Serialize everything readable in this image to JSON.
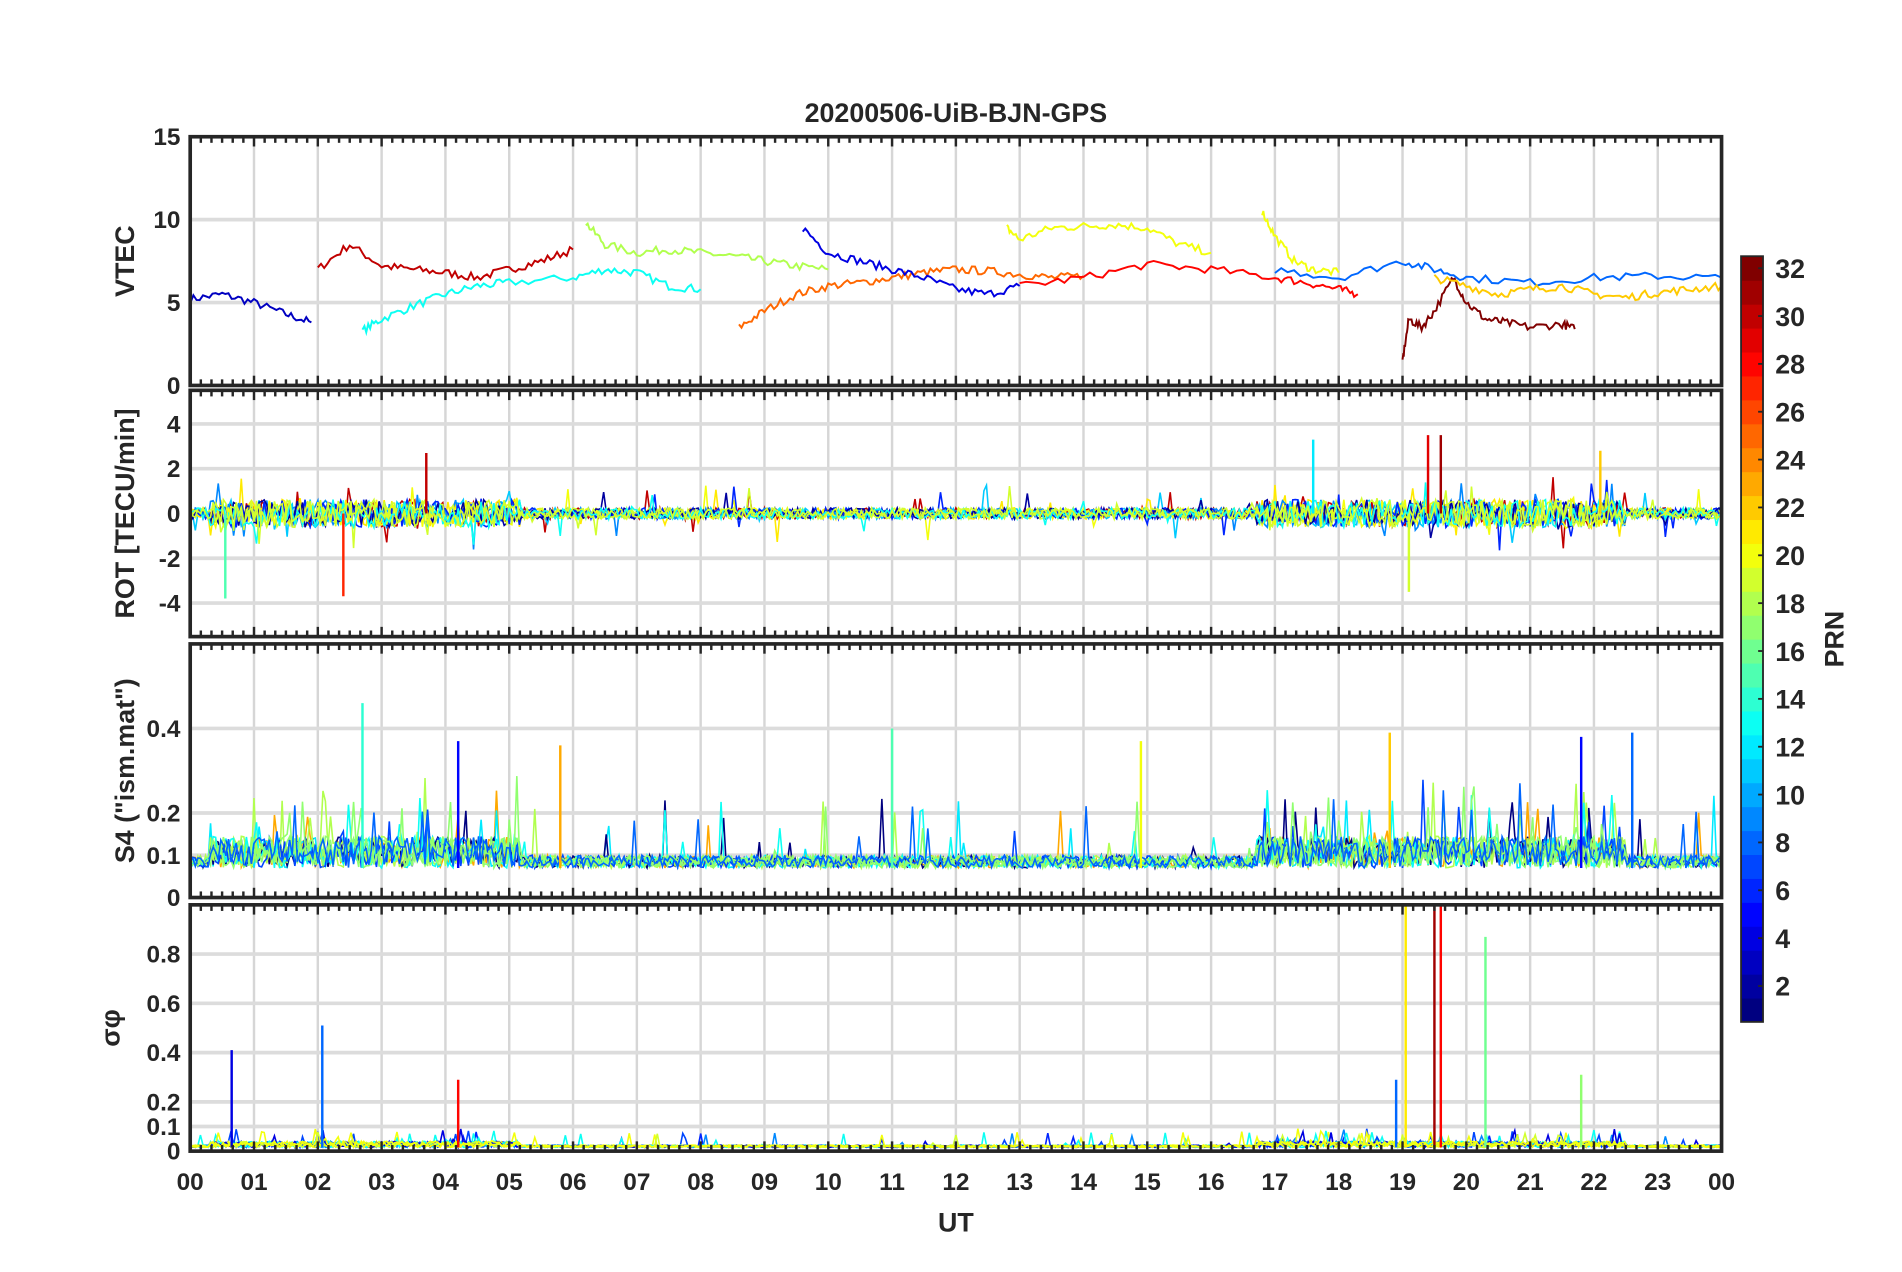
{
  "chart_data": {
    "type": "line",
    "title": "20200506-UiB-BJN-GPS",
    "xlabel": "UT",
    "x_range_hours": [
      0,
      24
    ],
    "x_ticks": [
      "00",
      "01",
      "02",
      "03",
      "04",
      "05",
      "06",
      "07",
      "08",
      "09",
      "10",
      "11",
      "12",
      "13",
      "14",
      "15",
      "16",
      "17",
      "18",
      "19",
      "20",
      "21",
      "22",
      "23",
      "00"
    ],
    "grid": true,
    "colorbar": {
      "label": "PRN",
      "range": [
        1,
        32
      ],
      "ticks": [
        "2",
        "4",
        "6",
        "8",
        "10",
        "12",
        "14",
        "16",
        "18",
        "20",
        "22",
        "24",
        "26",
        "28",
        "30",
        "32"
      ],
      "colormap": "jet",
      "placement": "right"
    },
    "panels": [
      {
        "ylabel": "VTEC",
        "ylim": [
          0,
          15
        ],
        "yticks": [
          "0",
          "5",
          "10",
          "15"
        ],
        "ytick_values": [
          0,
          5,
          10,
          15
        ],
        "series": [
          {
            "prn": 3,
            "x": [
              0,
              0.5,
              1,
              1.5,
              1.9
            ],
            "y": [
              5.2,
              5.5,
              5,
              4.3,
              3.8
            ]
          },
          {
            "prn": 30,
            "x": [
              2,
              2.5,
              3,
              3.5,
              4,
              4.5,
              5,
              5.5,
              6
            ],
            "y": [
              7,
              8.5,
              7.2,
              7,
              6.8,
              6.5,
              7,
              7.5,
              8.2
            ]
          },
          {
            "prn": 13,
            "x": [
              2.7,
              3,
              3.5,
              4,
              4.5,
              5,
              6,
              6.5,
              7,
              7.5,
              8
            ],
            "y": [
              3.3,
              4,
              4.8,
              5.5,
              6,
              6.2,
              6.5,
              7,
              6.8,
              6,
              5.8
            ]
          },
          {
            "prn": 18,
            "x": [
              6.2,
              6.5,
              7,
              7.5,
              8,
              8.5,
              9,
              9.5,
              10
            ],
            "y": [
              9.8,
              8.5,
              8,
              8.2,
              8,
              7.8,
              7.5,
              7.2,
              7
            ]
          },
          {
            "prn": 25,
            "x": [
              8.6,
              9,
              9.5,
              10,
              10.5,
              11,
              11.5,
              12,
              12.5,
              13,
              13.5,
              14
            ],
            "y": [
              3.5,
              4.5,
              5.5,
              6,
              6.2,
              6.5,
              6.8,
              7,
              6.9,
              6.7,
              6.5,
              6.6
            ]
          },
          {
            "prn": 4,
            "x": [
              9.6,
              10,
              10.5,
              11,
              11.5,
              12,
              12.5,
              13
            ],
            "y": [
              9.5,
              8,
              7.5,
              7,
              6.5,
              5.8,
              5.5,
              6
            ]
          },
          {
            "prn": 20,
            "x": [
              12.8,
              13,
              13.5,
              14,
              14.5,
              15,
              15.5,
              16
            ],
            "y": [
              9.5,
              8.8,
              9.5,
              9.6,
              9.7,
              9.5,
              8.5,
              8
            ]
          },
          {
            "prn": 28,
            "x": [
              13,
              14,
              15,
              16,
              17,
              17.5,
              18,
              18.3
            ],
            "y": [
              6,
              6.5,
              7.3,
              7,
              6.5,
              6.2,
              5.8,
              5.5
            ]
          },
          {
            "prn": 20,
            "x": [
              16.8,
              17,
              17.3,
              17.6,
              18
            ],
            "y": [
              10.5,
              9,
              7.5,
              7,
              6.8
            ]
          },
          {
            "prn": 32,
            "x": [
              19,
              19.1,
              19.3,
              19.5,
              19.8,
              20,
              20.3,
              20.6,
              21,
              21.5,
              21.7
            ],
            "y": [
              1.5,
              4,
              3.5,
              4.5,
              6.5,
              5,
              4,
              3.8,
              3.5,
              3.7,
              3.4
            ]
          },
          {
            "prn": 8,
            "x": [
              17,
              18,
              19,
              19.5,
              20,
              21,
              22,
              23,
              24
            ],
            "y": [
              7,
              6.5,
              7.5,
              7,
              6.5,
              6.2,
              6.5,
              6.6,
              6.5
            ]
          },
          {
            "prn": 22,
            "x": [
              19.5,
              20,
              20.5,
              21,
              21.5,
              22,
              22.5,
              23,
              23.5,
              24
            ],
            "y": [
              6.5,
              6,
              5.5,
              5.8,
              6,
              5.5,
              5.3,
              5.6,
              5.8,
              6
            ]
          }
        ]
      },
      {
        "ylabel": "ROT [TECU/min]",
        "ylim": [
          -5.5,
          5.5
        ],
        "yticks": [
          "-4",
          "-2",
          "0",
          "2",
          "4"
        ],
        "ytick_values": [
          -4,
          -2,
          0,
          2,
          4
        ],
        "series": [
          {
            "prn": 15,
            "x": [
              0.55
            ],
            "y": [
              -3.8
            ]
          },
          {
            "prn": 27,
            "x": [
              2.4
            ],
            "y": [
              -3.7
            ]
          },
          {
            "prn": 30,
            "x": [
              3.7
            ],
            "y": [
              2.7
            ]
          },
          {
            "prn": 29,
            "x": [
              19.4
            ],
            "y": [
              3.5
            ]
          },
          {
            "prn": 31,
            "x": [
              19.6
            ],
            "y": [
              3.5
            ]
          },
          {
            "prn": 12,
            "x": [
              17.6
            ],
            "y": [
              3.3
            ]
          },
          {
            "prn": 19,
            "x": [
              19.1
            ],
            "y": [
              -3.5
            ]
          },
          {
            "prn": 22,
            "x": [
              22.1
            ],
            "y": [
              2.8
            ]
          }
        ]
      },
      {
        "ylabel": "S4 (\"ism.mat\")",
        "ylim": [
          0,
          0.6
        ],
        "yticks": [
          "0",
          "0.1",
          "0.2",
          "0.4"
        ],
        "ytick_values": [
          0,
          0.1,
          0.2,
          0.4
        ],
        "series": [
          {
            "prn": 14,
            "x": [
              2.7
            ],
            "y": [
              0.46
            ]
          },
          {
            "prn": 5,
            "x": [
              4.2
            ],
            "y": [
              0.37
            ]
          },
          {
            "prn": 23,
            "x": [
              5.8
            ],
            "y": [
              0.36
            ]
          },
          {
            "prn": 15,
            "x": [
              11
            ],
            "y": [
              0.4
            ]
          },
          {
            "prn": 20,
            "x": [
              14.9
            ],
            "y": [
              0.37
            ]
          },
          {
            "prn": 22,
            "x": [
              18.8
            ],
            "y": [
              0.39
            ]
          },
          {
            "prn": 5,
            "x": [
              21.8
            ],
            "y": [
              0.38
            ]
          },
          {
            "prn": 8,
            "x": [
              22.6
            ],
            "y": [
              0.39
            ]
          }
        ]
      },
      {
        "ylabel": "σφ",
        "ylim": [
          0,
          1
        ],
        "yticks": [
          "0",
          "0.1",
          "0.2",
          "0.4",
          "0.6",
          "0.8"
        ],
        "ytick_values": [
          0,
          0.1,
          0.2,
          0.4,
          0.6,
          0.8
        ],
        "series": [
          {
            "prn": 4,
            "x": [
              0.65
            ],
            "y": [
              0.41
            ]
          },
          {
            "prn": 8,
            "x": [
              2.07
            ],
            "y": [
              0.51
            ]
          },
          {
            "prn": 28,
            "x": [
              4.2
            ],
            "y": [
              0.29
            ]
          },
          {
            "prn": 8,
            "x": [
              18.9
            ],
            "y": [
              0.29
            ]
          },
          {
            "prn": 21,
            "x": [
              19.05
            ],
            "y": [
              1.0
            ]
          },
          {
            "prn": 31,
            "x": [
              19.5
            ],
            "y": [
              1.0
            ]
          },
          {
            "prn": 28,
            "x": [
              19.6
            ],
            "y": [
              1.0
            ]
          },
          {
            "prn": 16,
            "x": [
              20.3
            ],
            "y": [
              0.87
            ]
          },
          {
            "prn": 17,
            "x": [
              21.8
            ],
            "y": [
              0.31
            ]
          }
        ]
      }
    ]
  }
}
